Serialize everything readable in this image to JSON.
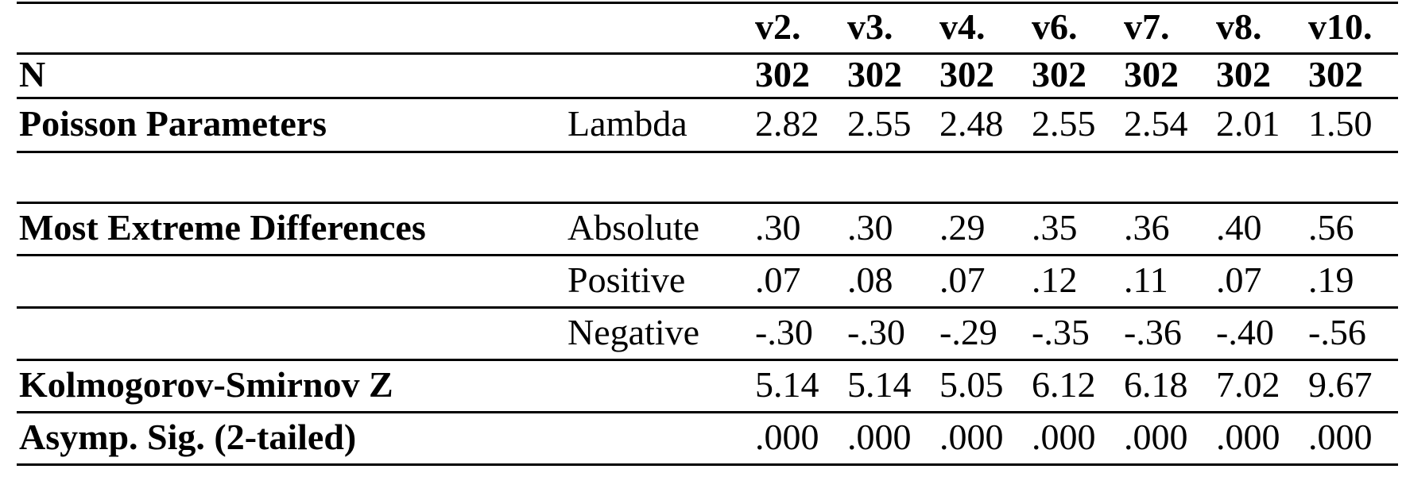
{
  "colors": {
    "text": "#000000",
    "background": "#ffffff",
    "rule": "#000000"
  },
  "table": {
    "columns": [
      "v2.",
      "v3.",
      "v4.",
      "v6.",
      "v7.",
      "v8.",
      "v10."
    ],
    "rows": [
      {
        "label": "N",
        "sublabel": "",
        "values_bold": true,
        "spacer": false,
        "values": [
          "302",
          "302",
          "302",
          "302",
          "302",
          "302",
          "302"
        ]
      },
      {
        "label": "Poisson Parameters",
        "sublabel": "Lambda",
        "values_bold": false,
        "spacer": false,
        "values": [
          "2.82",
          "2.55",
          "2.48",
          "2.55",
          "2.54",
          "2.01",
          "1.50"
        ]
      },
      {
        "label": "",
        "sublabel": "",
        "values_bold": false,
        "spacer": true,
        "values": [
          "",
          "",
          "",
          "",
          "",
          "",
          ""
        ]
      },
      {
        "label": "Most Extreme Differences",
        "sublabel": "Absolute",
        "values_bold": false,
        "spacer": false,
        "values": [
          ".30",
          ".30",
          ".29",
          ".35",
          ".36",
          ".40",
          ".56"
        ]
      },
      {
        "label": "",
        "sublabel": "Positive",
        "values_bold": false,
        "spacer": false,
        "values": [
          ".07",
          ".08",
          ".07",
          ".12",
          ".11",
          ".07",
          ".19"
        ]
      },
      {
        "label": "",
        "sublabel": "Negative",
        "values_bold": false,
        "spacer": false,
        "values": [
          "-.30",
          "-.30",
          "-.29",
          "-.35",
          "-.36",
          "-.40",
          "-.56"
        ]
      },
      {
        "label": "Kolmogorov-Smirnov Z",
        "sublabel": "",
        "values_bold": false,
        "spacer": false,
        "values": [
          "5.14",
          "5.14",
          "5.05",
          "6.12",
          "6.18",
          "7.02",
          "9.67"
        ]
      },
      {
        "label": "Asymp. Sig. (2-tailed)",
        "sublabel": "",
        "values_bold": false,
        "spacer": false,
        "values": [
          ".000",
          ".000",
          ".000",
          ".000",
          ".000",
          ".000",
          ".000"
        ]
      }
    ]
  }
}
